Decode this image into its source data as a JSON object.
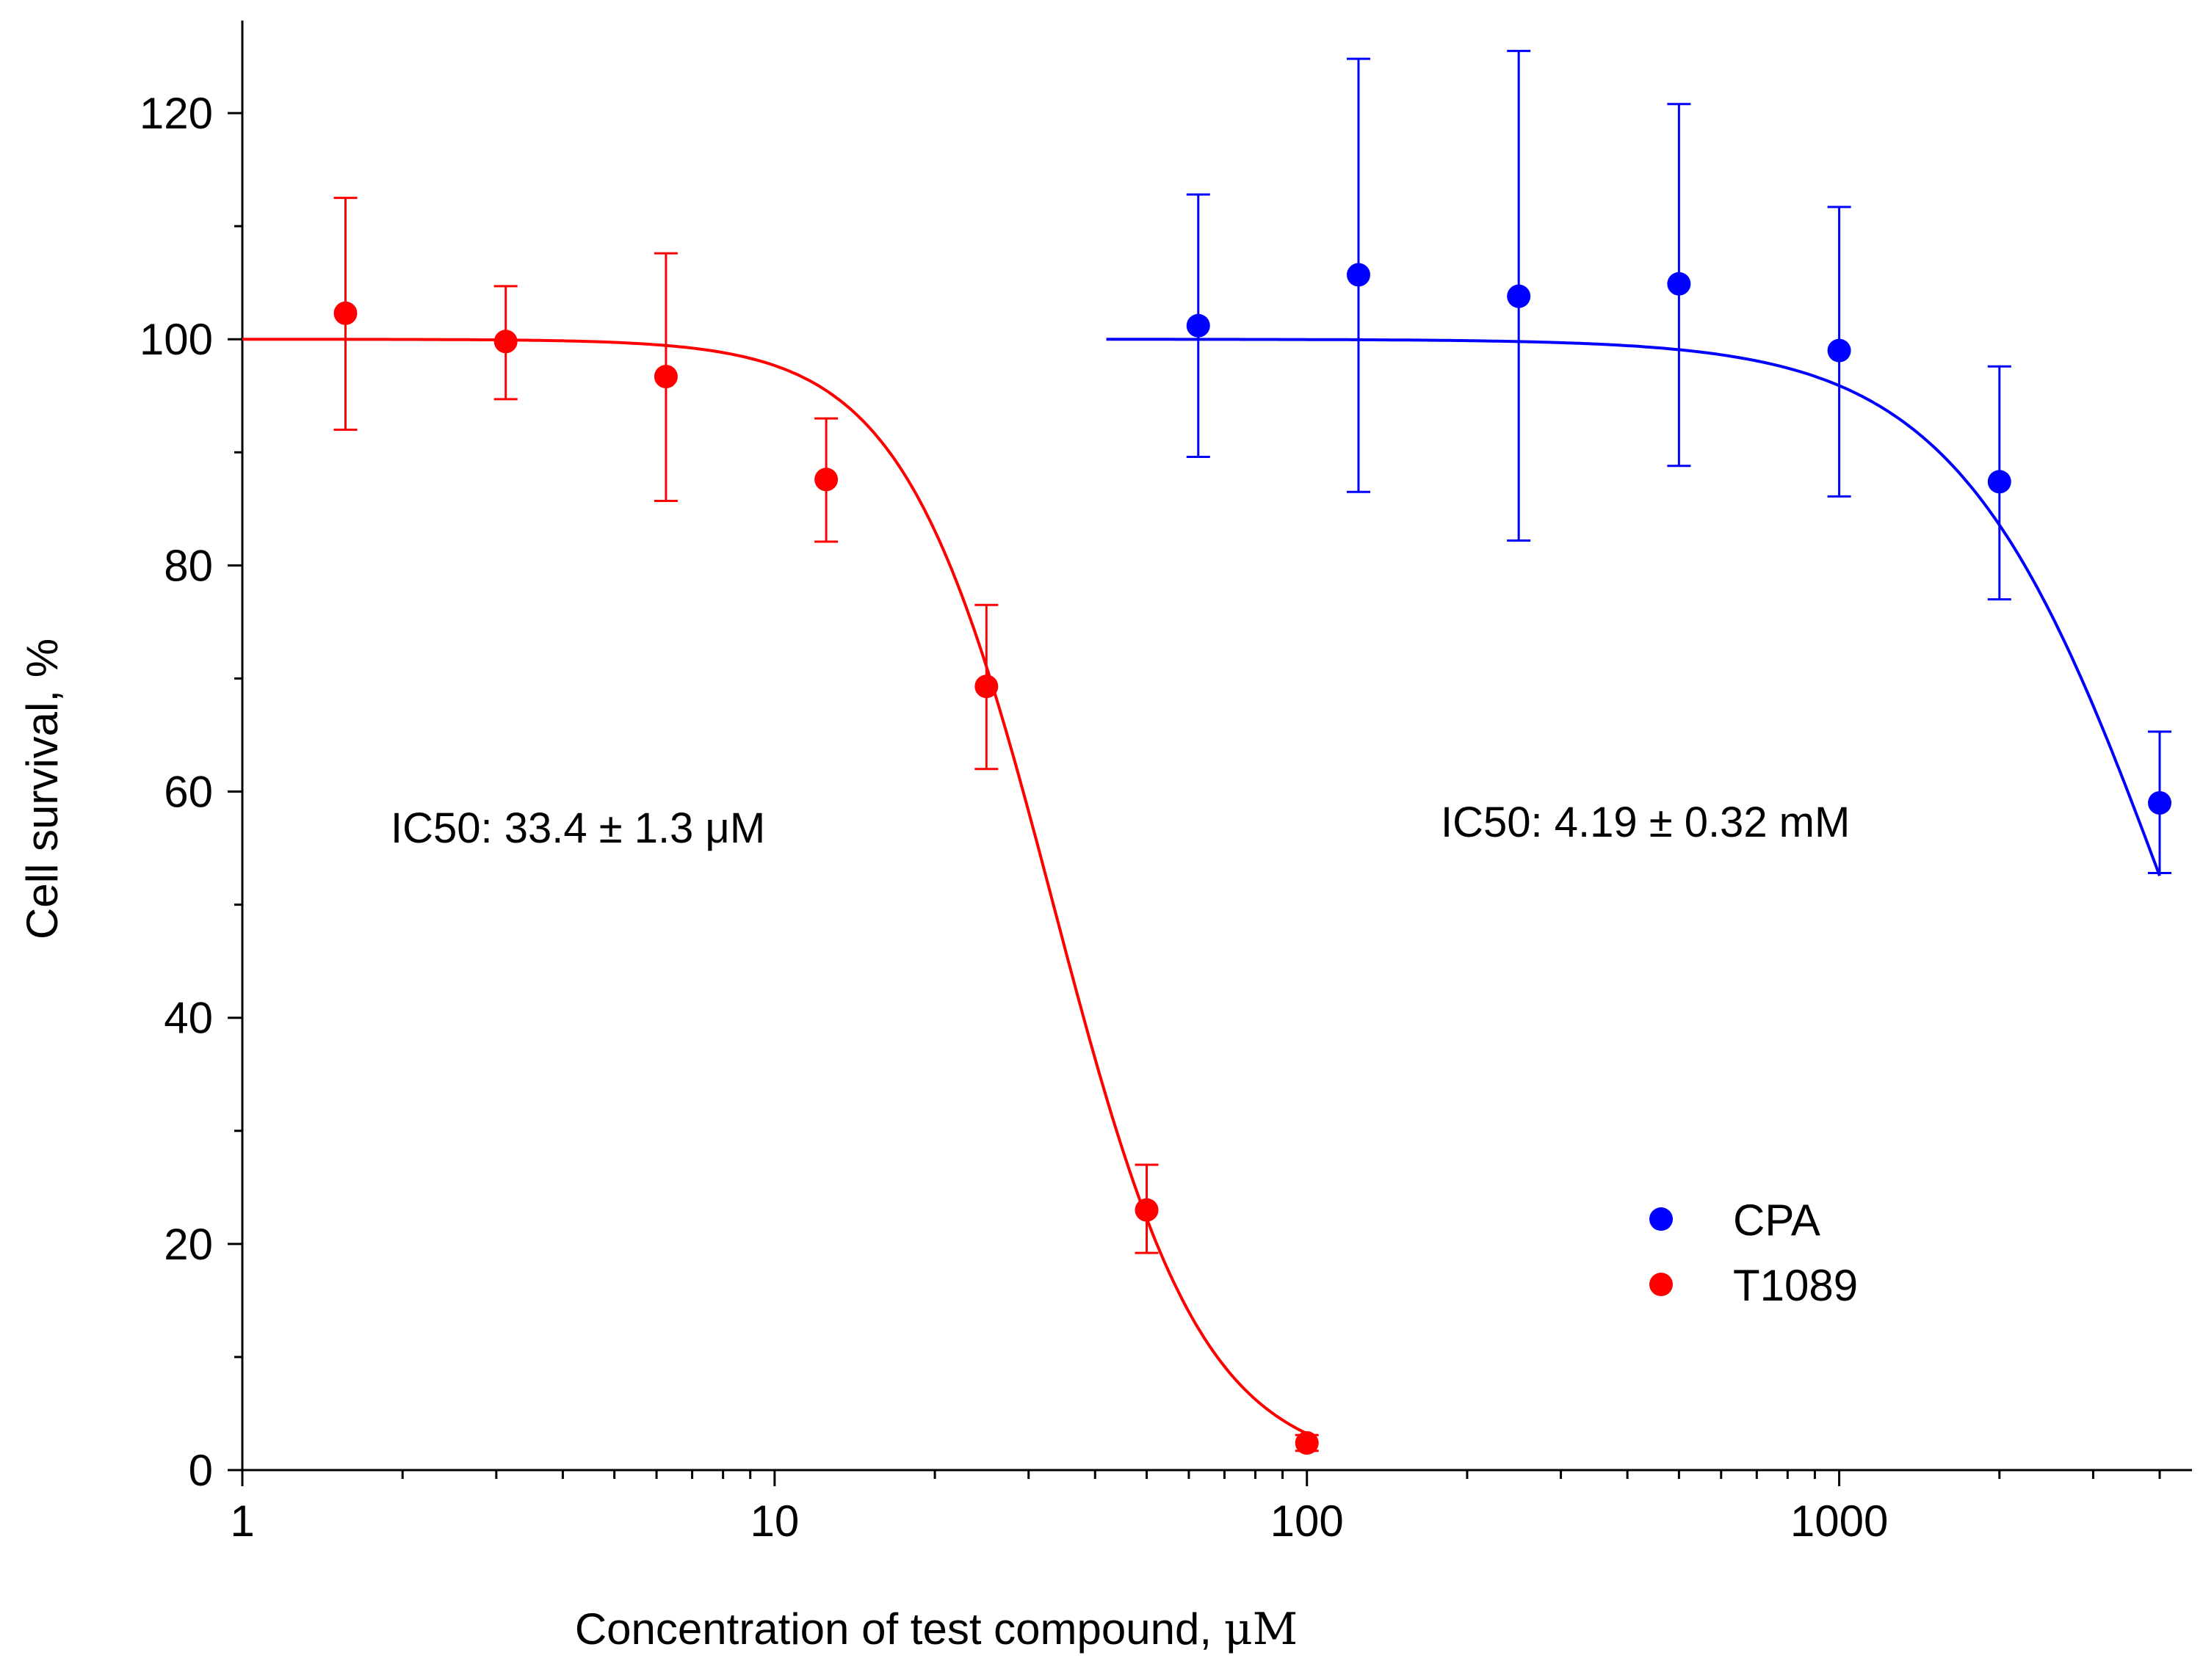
{
  "chart_data": {
    "type": "scatter",
    "title": "",
    "xlabel_prefix": "Concentration of test compound, ",
    "xlabel_unit": "μM",
    "ylabel": "Cell survival, %",
    "xscale": "log",
    "xlim": [
      1,
      4600
    ],
    "ylim": [
      0,
      130
    ],
    "xticks": [
      1,
      10,
      100,
      1000
    ],
    "xtick_labels": [
      "1",
      "10",
      "100",
      "1000"
    ],
    "yticks": [
      0,
      20,
      40,
      60,
      80,
      100,
      120
    ],
    "ytick_labels": [
      "0",
      "20",
      "40",
      "60",
      "80",
      "100",
      "120"
    ],
    "legend_position": "bottom-right",
    "series": [
      {
        "name": "CPA",
        "color": "#0000ff",
        "x": [
          62.5,
          125,
          250,
          500,
          1000,
          2000,
          4000
        ],
        "y": [
          101.2,
          105.7,
          103.8,
          104.9,
          99.0,
          87.4,
          59.0
        ],
        "err_low": [
          89.6,
          86.5,
          82.2,
          88.8,
          86.1,
          77.0,
          52.8
        ],
        "err_high": [
          112.8,
          124.8,
          125.5,
          120.8,
          111.7,
          97.6,
          65.3
        ],
        "fit": {
          "ic50": 4190,
          "hill": 2.2,
          "top": 100,
          "x_start": 42,
          "x_end": 4000
        },
        "ic50_label": "IC50:  4.19 ± 0.32 mM"
      },
      {
        "name": "T1089",
        "color": "#ff0000",
        "x": [
          1.5625,
          3.125,
          6.25,
          12.5,
          25,
          50,
          100
        ],
        "y": [
          102.3,
          99.8,
          96.7,
          87.6,
          69.3,
          23.0,
          2.4
        ],
        "err_low": [
          92.0,
          94.7,
          85.7,
          82.1,
          62.0,
          19.2,
          1.7
        ],
        "err_high": [
          112.5,
          104.7,
          107.6,
          93.0,
          76.5,
          27.0,
          3.1
        ],
        "fit": {
          "ic50": 33.4,
          "hill": 3.1,
          "top": 100,
          "x_start": 1,
          "x_end": 100
        },
        "ic50_label": "IC50:  33.4 ± 1.3 μM"
      }
    ]
  }
}
